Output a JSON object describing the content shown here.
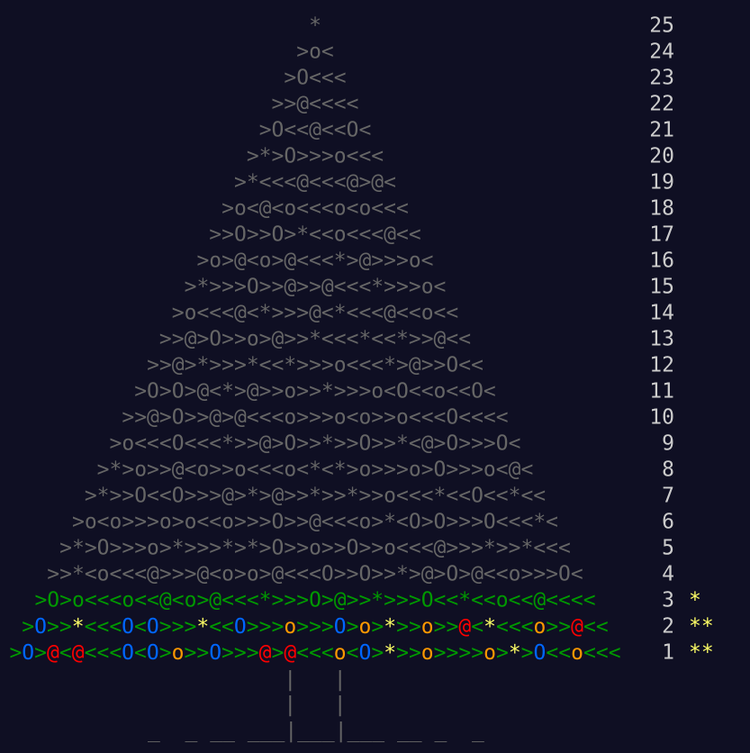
{
  "calendar": {
    "rows": [
      {
        "day": "25",
        "art": "*",
        "color": "#666666",
        "ornaments": false,
        "stars": ""
      },
      {
        "day": "24",
        "art": ">o<",
        "color": "#666666",
        "ornaments": false,
        "stars": ""
      },
      {
        "day": "23",
        "art": ">O<<<",
        "color": "#666666",
        "ornaments": false,
        "stars": ""
      },
      {
        "day": "22",
        "art": ">>@<<<<",
        "color": "#666666",
        "ornaments": false,
        "stars": ""
      },
      {
        "day": "21",
        "art": ">O<<@<<O<",
        "color": "#666666",
        "ornaments": false,
        "stars": ""
      },
      {
        "day": "20",
        "art": ">*>O>>>o<<<",
        "color": "#666666",
        "ornaments": false,
        "stars": ""
      },
      {
        "day": "19",
        "art": ">*<<<@<<<@>@<",
        "color": "#666666",
        "ornaments": false,
        "stars": ""
      },
      {
        "day": "18",
        "art": ">o<@<o<<<o<o<<<",
        "color": "#666666",
        "ornaments": false,
        "stars": ""
      },
      {
        "day": "17",
        "art": ">>O>>O>*<<o<<<@<<",
        "color": "#666666",
        "ornaments": false,
        "stars": ""
      },
      {
        "day": "16",
        "art": ">o>@<o>@<<<*>@>>>o<",
        "color": "#666666",
        "ornaments": false,
        "stars": ""
      },
      {
        "day": "15",
        "art": ">*>>>O>>@>>@<<<*>>>o<",
        "color": "#666666",
        "ornaments": false,
        "stars": ""
      },
      {
        "day": "14",
        "art": ">o<<<@<*>>>@<*<<<@<<o<<",
        "color": "#666666",
        "ornaments": false,
        "stars": ""
      },
      {
        "day": "13",
        "art": ">>@>O>>o>@>>*<<<*<<*>>@<<",
        "color": "#666666",
        "ornaments": false,
        "stars": ""
      },
      {
        "day": "12",
        "art": ">>@>*>>>*<<*>>>o<<<*>@>>O<<",
        "color": "#666666",
        "ornaments": false,
        "stars": ""
      },
      {
        "day": "11",
        "art": ">O>O>@<*>@>>o>>*>>>o<O<<o<<O<",
        "color": "#666666",
        "ornaments": false,
        "stars": ""
      },
      {
        "day": "10",
        "art": ">>@>O>>@>@<<<o>>>o<o>>o<<<O<<<<",
        "color": "#666666",
        "ornaments": false,
        "stars": ""
      },
      {
        "day": "9",
        "art": ">o<<<O<<<*>>@>O>>*>>O>>*<@>O>>>O<",
        "color": "#666666",
        "ornaments": false,
        "stars": ""
      },
      {
        "day": "8",
        "art": ">*>o>>@<o>>o<<<o<*<*>o>>>o>O>>>o<@<",
        "color": "#666666",
        "ornaments": false,
        "stars": ""
      },
      {
        "day": "7",
        "art": ">*>>O<<O>>>@>*>@>>*>>*>>o<<<*<<O<<*<<",
        "color": "#666666",
        "ornaments": false,
        "stars": ""
      },
      {
        "day": "6",
        "art": ">o<o>>>o>o<<o>>>O>>@<<<o>*<O>O>>>O<<<*<",
        "color": "#666666",
        "ornaments": false,
        "stars": ""
      },
      {
        "day": "5",
        "art": ">*>O>>>o>*>>>*>*>O>>o>>O>>o<<<@>>>*>>*<<<",
        "color": "#666666",
        "ornaments": false,
        "stars": ""
      },
      {
        "day": "4",
        "art": ">>*<o<<<@>>>@<o>o>@<<<O>>O>>*>@>O>@<<o>>>O<",
        "color": "#666666",
        "ornaments": false,
        "stars": ""
      },
      {
        "day": "3",
        "art": ">O>o<<<o<<@<o>@<<<*>>>O>@>>*>>>O<<*<<o<<@<<<<",
        "color": "#009900",
        "ornaments": false,
        "stars": "*"
      },
      {
        "day": "2",
        "art": ">O>>*<<<O<O>>>*<<O>>>o>>>O>o>*>>o>>@<*<<<o>>@<<",
        "color": "#009900",
        "ornaments": true,
        "stars": "**"
      },
      {
        "day": "1",
        "art": ">O>@<@<<<O<O>o>>O>>>@>@<<<o<O>*>>o>>>>o>*>O<<o<<<",
        "color": "#009900",
        "ornaments": true,
        "stars": "**"
      }
    ],
    "ornament_colors": {
      "O": "#0066ff",
      "*": "#ffff66",
      "o": "#ff9900",
      "@": "#ff0000"
    },
    "trunk": [
      "|   |",
      "|   |"
    ],
    "ground": "_  _ __ ___|___|___ __ _  _",
    "star_color": "#ffff66"
  }
}
